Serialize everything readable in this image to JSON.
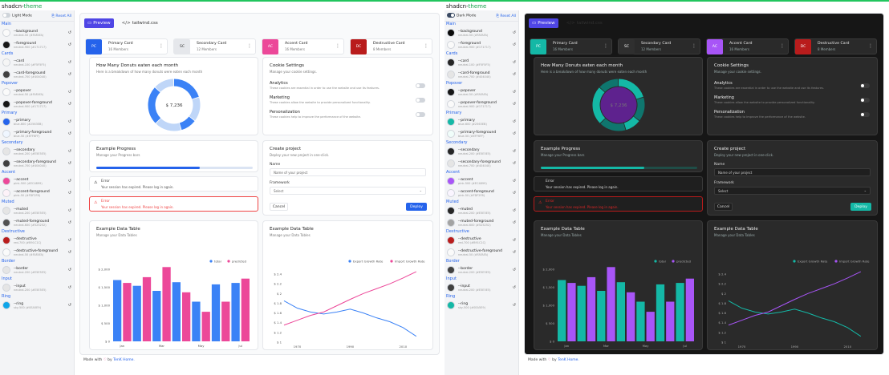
{
  "app": {
    "brand_a": "shadcn-",
    "brand_b": "theme",
    "footer_pre": "Made with",
    "footer_heart": "♡",
    "footer_by": "by",
    "footer_author": "TenK Home."
  },
  "sidebar": {
    "reset_label": "Reset All",
    "groups": [
      {
        "title": "Main",
        "tokens": [
          {
            "name": "--background",
            "value": "neutral-50 (#FAFAFA)",
            "light": "#fafafa",
            "dark": "#0a0a0a"
          },
          {
            "name": "--foreground",
            "value": "neutral-900 (#171717)",
            "light": "#171717",
            "dark": "#fafafa"
          }
        ]
      },
      {
        "title": "Cards",
        "tokens": [
          {
            "name": "--card",
            "value": "neutral-100 (#F5F5F5)",
            "light": "#f5f5f5",
            "dark": "#262626"
          },
          {
            "name": "--card-foreground",
            "value": "neutral-700 (#404040)",
            "light": "#404040",
            "dark": "#e5e5e5"
          }
        ]
      },
      {
        "title": "Popover",
        "tokens": [
          {
            "name": "--popover",
            "value": "neutral-50 (#FAFAFA)",
            "light": "#fafafa",
            "dark": "#171717"
          },
          {
            "name": "--popover-foreground",
            "value": "neutral-900 (#171717)",
            "light": "#171717",
            "dark": "#fafafa"
          }
        ]
      },
      {
        "title": "Primary",
        "tokens": [
          {
            "name": "--primary",
            "value": "blue-600 (#2563EB)",
            "light": "#2563eb",
            "dark": "#14b8a6"
          },
          {
            "name": "--primary-foreground",
            "value": "blue-50 (#EFF6FF)",
            "light": "#eff6ff",
            "dark": "#f0fdfa"
          }
        ]
      },
      {
        "title": "Secondary",
        "tokens": [
          {
            "name": "--secondary",
            "value": "neutral-200 (#E5E5E5)",
            "light": "#e5e5e5",
            "dark": "#262626"
          },
          {
            "name": "--secondary-foreground",
            "value": "neutral-700 (#404040)",
            "light": "#404040",
            "dark": "#e5e5e5"
          }
        ]
      },
      {
        "title": "Accent",
        "tokens": [
          {
            "name": "--accent",
            "value": "pink-500 (#EC4899)",
            "light": "#ec4899",
            "dark": "#a855f7"
          },
          {
            "name": "--accent-foreground",
            "value": "pink-50 (#FDF2F8)",
            "light": "#fdf2f8",
            "dark": "#faf5ff"
          }
        ]
      },
      {
        "title": "Muted",
        "tokens": [
          {
            "name": "--muted",
            "value": "neutral-200 (#E5E5E5)",
            "light": "#e5e5e5",
            "dark": "#262626"
          },
          {
            "name": "--muted-foreground",
            "value": "neutral-600 (#525252)",
            "light": "#525252",
            "dark": "#a3a3a3"
          }
        ]
      },
      {
        "title": "Destructive",
        "tokens": [
          {
            "name": "--destructive",
            "value": "red-700 (#B91C1C)",
            "light": "#b91c1c",
            "dark": "#b91c1c"
          },
          {
            "name": "--destructive-foreground",
            "value": "neutral-50 (#FAFAFA)",
            "light": "#fafafa",
            "dark": "#fafafa"
          }
        ]
      },
      {
        "title": "Border",
        "tokens": [
          {
            "name": "--border",
            "value": "neutral-200 (#E5E5E5)",
            "light": "#e5e5e5",
            "dark": "#404040"
          }
        ]
      },
      {
        "title": "Input",
        "tokens": [
          {
            "name": "--input",
            "value": "neutral-200 (#E5E5E5)",
            "light": "#e5e5e5",
            "dark": "#404040"
          }
        ]
      },
      {
        "title": "Ring",
        "tokens": [
          {
            "name": "--ring",
            "value": "sky-500 (#0EA5E9)",
            "light": "#0ea5e9",
            "dark": "#14b8a6"
          }
        ]
      }
    ]
  },
  "light": {
    "mode_label": "Light Mode",
    "bg": "#ffffff",
    "sidebar": "#f3f4f6",
    "main": "#f9fafb",
    "primary": "#2563eb",
    "accent": "#ec4899",
    "secondary": "#e5e7eb",
    "destructive": "#b91c1c",
    "progress_track": "#dbe4f3",
    "donut_base": "#3b82f6",
    "donut_light": "#bfd6f8",
    "bar1": "#3b82f6",
    "bar2": "#ec4899",
    "line1": "#3b82f6",
    "line2": "#ec4899",
    "axis_text": "#555",
    "center_text": "#333",
    "radial_fill": "#ffffff"
  },
  "dark": {
    "mode_label": "Dark Mode",
    "bg": "#ffffff",
    "sidebar": "#f3f4f6",
    "main": "#161616",
    "primary": "#14b8a6",
    "accent": "#a855f7",
    "secondary": "#2f2f2f",
    "destructive": "#b91c1c",
    "progress_track": "#1f4d47",
    "donut_base": "#14b8a6",
    "donut_light": "#0f766e",
    "bar1": "#14b8a6",
    "bar2": "#a855f7",
    "line1": "#14b8a6",
    "line2": "#a855f7",
    "axis_text": "#aaa",
    "center_text": "#777",
    "radial_fill": "#6b21a8"
  },
  "tabs": {
    "preview": "Preview",
    "tailwind": "tailwind.css"
  },
  "pcards": [
    {
      "abbr": "PC",
      "title": "Primary Card",
      "sub": "16 Members",
      "color_key": "primary"
    },
    {
      "abbr": "SC",
      "title": "Secondary Card",
      "sub": "12 Members",
      "color_key": "secondary"
    },
    {
      "abbr": "AC",
      "title": "Accent Card",
      "sub": "16 Members",
      "color_key": "accent"
    },
    {
      "abbr": "DC",
      "title": "Destructive Card",
      "sub": "8 Members",
      "color_key": "destructive"
    }
  ],
  "donut": {
    "title": "How Many Donuts eaten each month",
    "sub": "Here is a breakdown of how many donuts were eaten each month",
    "center": "$ 7,236",
    "values": [
      60,
      45,
      30,
      50,
      72,
      38
    ]
  },
  "cookie": {
    "title": "Cookie Settings",
    "sub": "Manage your cookie settings.",
    "rows": [
      {
        "t": "Analytics",
        "d": "These cookies are essential in order to use the website and use its features."
      },
      {
        "t": "Marketing",
        "d": "These cookies allow the website to provide personalized functionality."
      },
      {
        "t": "Personalization",
        "d": "These cookies help to improve the performance of the website."
      }
    ]
  },
  "progress": {
    "title": "Example Progress",
    "sub": "Manage your Progress bars",
    "value": 0.66
  },
  "alerts": [
    {
      "title": "Error",
      "desc": "Your session has expired. Please log in again."
    },
    {
      "title": "Error",
      "desc": "Your session has expired. Please log in again."
    }
  ],
  "project": {
    "title": "Create project",
    "sub": "Deploy your new project in one-click.",
    "name_label": "Name",
    "name_placeholder": "Name of your project",
    "fw_label": "Framework",
    "fw_value": "Select",
    "cancel": "Cancel",
    "deploy": "Deploy"
  },
  "chart_data": [
    {
      "type": "bar",
      "title": "Example Data Table",
      "subtitle": "Manage your Data Tables",
      "categories": [
        "Jan",
        "Feb",
        "Mar",
        "Apr",
        "May",
        "Jun",
        "Jul"
      ],
      "tick_labels": [
        "Jan",
        "",
        "Mar",
        "",
        "May",
        "",
        "Jul"
      ],
      "series": [
        {
          "name": "total",
          "values": [
            1700,
            1540,
            1400,
            1640,
            1100,
            1580,
            1620
          ]
        },
        {
          "name": "predicted",
          "values": [
            1620,
            1780,
            2060,
            1360,
            820,
            1100,
            1740
          ]
        },
        {
          "name": "total",
          "values": [
            1420,
            1740,
            1780,
            1500,
            1620,
            1420,
            1700
          ]
        },
        {
          "name": "predicted",
          "values": [
            1760,
            2000,
            2020,
            1720,
            1960,
            1180,
            1960
          ]
        },
        {
          "name": "total",
          "values": [
            1860,
            1520,
            1320,
            1560,
            1520,
            820,
            1180
          ]
        },
        {
          "name": "predicted",
          "values": [
            1680,
            1540,
            1880,
            1860,
            1700,
            1920,
            1660
          ]
        }
      ],
      "ylim": [
        0,
        2000
      ],
      "yticks": [
        "$ 0",
        "$ 500",
        "$ 1,000",
        "$ 1,500",
        "$ 2,000"
      ]
    },
    {
      "type": "line",
      "title": "Example Data Table",
      "subtitle": "Manage your Data Tables",
      "series": [
        {
          "name": "Export Growth Rate"
        },
        {
          "name": "Import Growth Rate"
        }
      ],
      "x": [
        1965,
        1970,
        1975,
        1980,
        1985,
        1990,
        1995,
        2000,
        2005,
        2010,
        2015
      ],
      "xticks": [
        1970,
        1990,
        2010
      ],
      "xlim": [
        1965,
        2019
      ],
      "ylim": [
        1,
        2.5
      ],
      "yticks": [
        "$ 1",
        "$ 1.2",
        "$ 1.4",
        "$ 1.6",
        "$ 1.8",
        "$ 2",
        "$ 2.2",
        "$ 2.4"
      ],
      "export": [
        1.85,
        1.7,
        1.62,
        1.58,
        1.62,
        1.68,
        1.6,
        1.5,
        1.42,
        1.3,
        1.12
      ],
      "import": [
        1.35,
        1.45,
        1.55,
        1.62,
        1.75,
        1.88,
        2.0,
        2.1,
        2.2,
        2.32,
        2.45
      ]
    }
  ]
}
